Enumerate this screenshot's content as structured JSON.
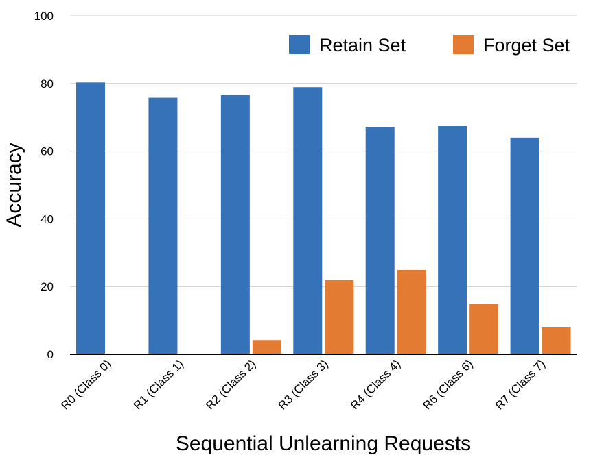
{
  "chart_data": {
    "type": "bar",
    "title": "",
    "xlabel": "Sequential Unlearning Requests",
    "ylabel": "Accuracy",
    "ylim": [
      0,
      100
    ],
    "yticks": [
      0,
      20,
      40,
      60,
      80,
      100
    ],
    "grid": true,
    "legend_position": "top-right",
    "categories": [
      "R0 (Class 0)",
      "R1 (Class 1)",
      "R2 (Class 2)",
      "R3 (Class 3)",
      "R4 (Class 4)",
      "R6 (Class 6)",
      "R7 (Class 7)"
    ],
    "series": [
      {
        "name": "Retain Set",
        "color": "#3572b8",
        "values": [
          80.3,
          75.8,
          76.6,
          78.9,
          67.2,
          67.4,
          64.0
        ]
      },
      {
        "name": "Forget Set",
        "color": "#e47b32",
        "values": [
          0,
          0,
          4.2,
          21.9,
          24.9,
          14.8,
          8.1
        ]
      }
    ]
  }
}
